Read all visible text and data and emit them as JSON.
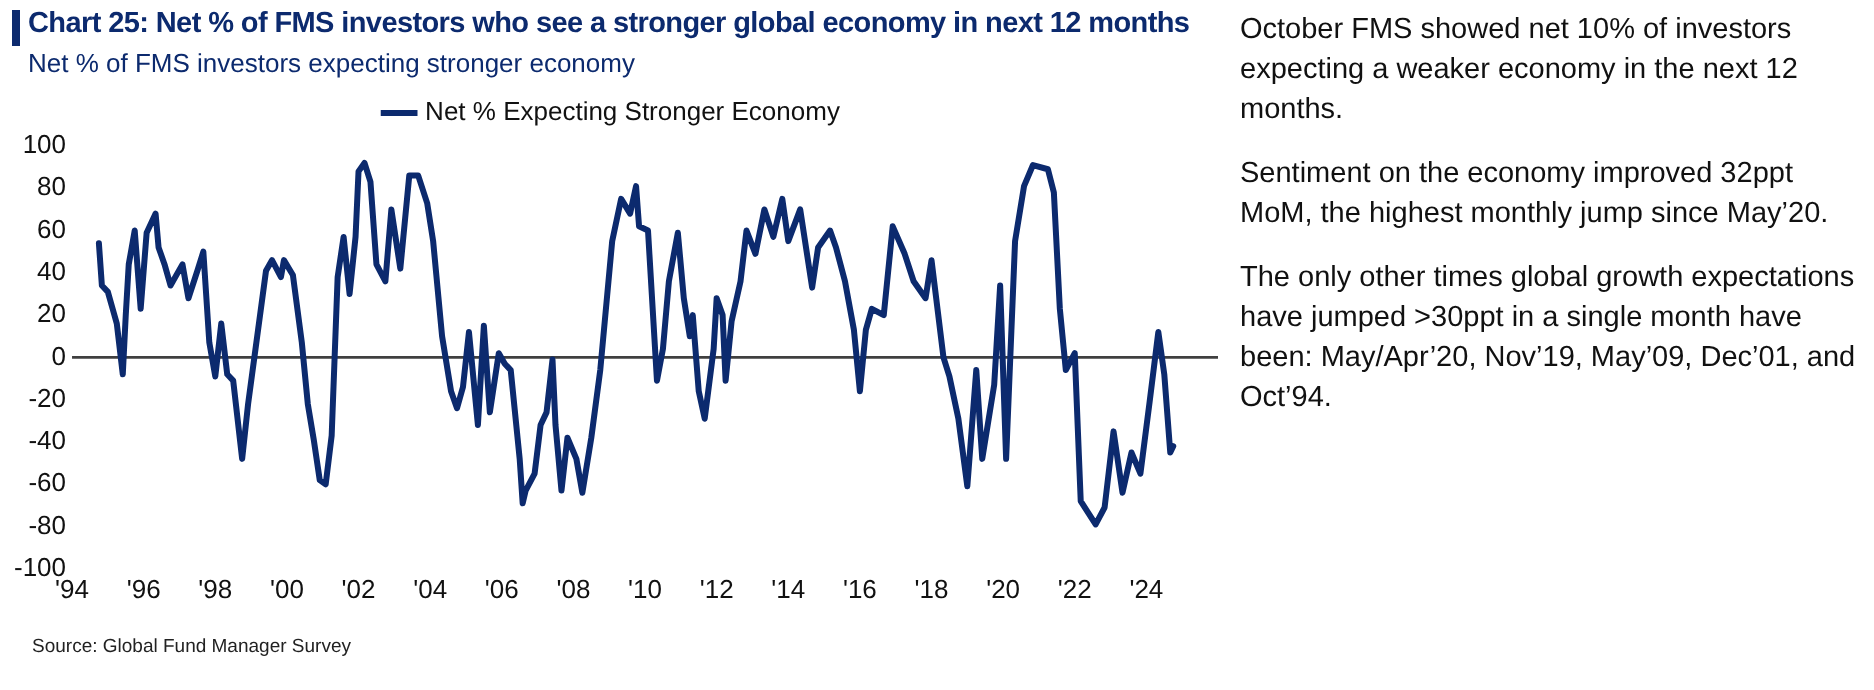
{
  "chart_data": {
    "type": "line",
    "title": "Chart 25: Net % of FMS investors who see a stronger global economy in next 12 months",
    "subtitle": "Net % of FMS investors expecting stronger economy",
    "annotations": [
      "October FMS showed net 10% of investors expecting a weaker economy in the next 12 months.",
      "Sentiment on the economy improved 32ppt MoM, the highest monthly jump since May’20.",
      "The only other times global growth expectations have jumped >30ppt in a single month have been: May/Apr’20, Nov’19, May’09, Dec’01, and Oct’94.",
      "Source: Global Fund Manager Survey"
    ],
    "x": [
      "1994-10",
      "1994-11",
      "1995-01",
      "1995-03",
      "1995-04",
      "1995-06",
      "1995-07",
      "1995-08",
      "1995-10",
      "1995-12",
      "1996-02",
      "1996-05",
      "1996-06",
      "1996-08",
      "1996-10",
      "1997-02",
      "1997-04",
      "1997-07",
      "1997-09",
      "1997-11",
      "1998-01",
      "1998-03",
      "1998-05",
      "1998-07",
      "1998-10",
      "1998-12",
      "1999-02",
      "1999-04",
      "1999-06",
      "1999-08",
      "1999-11",
      "1999-12",
      "2000-03",
      "2000-06",
      "2000-08",
      "2000-10",
      "2000-12",
      "2001-02",
      "2001-04",
      "2001-06",
      "2001-08",
      "2001-10",
      "2001-12",
      "2002-01",
      "2002-03",
      "2002-05",
      "2002-07",
      "2002-10",
      "2002-12",
      "2003-03",
      "2003-06",
      "2003-09",
      "2003-12",
      "2004-02",
      "2004-05",
      "2004-08",
      "2004-10",
      "2004-12",
      "2005-02",
      "2005-05",
      "2005-07",
      "2005-09",
      "2005-12",
      "2006-02",
      "2006-04",
      "2006-07",
      "2006-08",
      "2006-09",
      "2006-12",
      "2007-02",
      "2007-04",
      "2007-06",
      "2007-07",
      "2007-09",
      "2007-11",
      "2008-02",
      "2008-04",
      "2008-07",
      "2008-10",
      "2009-02",
      "2009-05",
      "2009-08",
      "2009-10",
      "2009-11",
      "2010-02",
      "2010-05",
      "2010-07",
      "2010-09",
      "2010-12",
      "2011-02",
      "2011-04",
      "2011-05",
      "2011-07",
      "2011-09",
      "2011-12",
      "2012-01",
      "2012-03",
      "2012-04",
      "2012-06",
      "2012-09",
      "2012-11",
      "2013-02",
      "2013-05",
      "2013-08",
      "2013-11",
      "2014-01",
      "2014-05",
      "2014-09",
      "2014-11",
      "2015-03",
      "2015-05",
      "2015-08",
      "2015-11",
      "2016-01",
      "2016-03",
      "2016-05",
      "2016-09",
      "2016-12",
      "2017-04",
      "2017-07",
      "2017-11",
      "2018-01",
      "2018-05",
      "2018-07",
      "2018-10",
      "2019-01",
      "2019-04",
      "2019-06",
      "2019-10",
      "2019-12",
      "2020-02",
      "2020-05",
      "2020-08",
      "2020-11",
      "2021-04",
      "2021-06",
      "2021-08",
      "2021-10",
      "2022-01",
      "2022-03",
      "2022-08",
      "2022-11",
      "2023-02",
      "2023-05",
      "2023-08",
      "2023-11",
      "2024-02",
      "2024-05",
      "2024-07",
      "2024-09",
      "2024-10"
    ],
    "series": [
      {
        "name": "Net % Expecting Stronger Economy",
        "color": "#0c2a6e",
        "values": [
          54,
          34,
          31,
          21,
          16,
          -8,
          20,
          44,
          60,
          23,
          59,
          68,
          52,
          44,
          34,
          44,
          28,
          41,
          50,
          7,
          -9,
          16,
          -8,
          -11,
          -48,
          -22,
          -1,
          20,
          41,
          46,
          38,
          46,
          39,
          7,
          -22,
          -39,
          -58,
          -60,
          -37,
          38,
          57,
          30,
          57,
          88,
          92,
          83,
          44,
          36,
          70,
          42,
          86,
          86,
          73,
          55,
          10,
          -16,
          -24,
          -14,
          12,
          -32,
          15,
          -26,
          2,
          -3,
          -6,
          -48,
          -69,
          -63,
          -55,
          -32,
          -26,
          -1,
          -32,
          -63,
          -38,
          -48,
          -64,
          -38,
          -6,
          55,
          75,
          68,
          81,
          62,
          60,
          -11,
          4,
          36,
          59,
          28,
          10,
          20,
          -16,
          -29,
          4,
          28,
          20,
          -11,
          17,
          36,
          60,
          49,
          70,
          57,
          75,
          55,
          70,
          33,
          52,
          60,
          52,
          36,
          13,
          -16,
          13,
          23,
          20,
          62,
          49,
          36,
          28,
          46,
          0,
          -9,
          -29,
          -61,
          -6,
          -48,
          -13,
          34,
          -48,
          55,
          81,
          91,
          89,
          78,
          23,
          -6,
          2,
          -68,
          -79,
          -71,
          -35,
          -64,
          -45,
          -55,
          -22,
          12,
          -8,
          -45,
          -42
        ]
      }
    ],
    "xlim": [
      "1994",
      "2026"
    ],
    "xticks": [
      {
        "value": "1994",
        "label": "'94"
      },
      {
        "value": "1996",
        "label": "'96"
      },
      {
        "value": "1998",
        "label": "'98"
      },
      {
        "value": "2000",
        "label": "'00"
      },
      {
        "value": "2002",
        "label": "'02"
      },
      {
        "value": "2004",
        "label": "'04"
      },
      {
        "value": "2006",
        "label": "'06"
      },
      {
        "value": "2008",
        "label": "'08"
      },
      {
        "value": "2010",
        "label": "'10"
      },
      {
        "value": "2012",
        "label": "'12"
      },
      {
        "value": "2014",
        "label": "'14"
      },
      {
        "value": "2016",
        "label": "'16"
      },
      {
        "value": "2018",
        "label": "'18"
      },
      {
        "value": "2020",
        "label": "'20"
      },
      {
        "value": "2022",
        "label": "'22"
      },
      {
        "value": "2024",
        "label": "'24"
      }
    ],
    "ylim": [
      -100,
      100
    ],
    "yticks": [
      -100,
      -80,
      -60,
      -40,
      -20,
      0,
      20,
      40,
      60,
      80,
      100
    ],
    "ref_lines": [
      {
        "axis": "y",
        "value": 0,
        "color": "#404040"
      }
    ],
    "grid": false,
    "legend": "top",
    "marker": "none",
    "line_style": "solid"
  }
}
